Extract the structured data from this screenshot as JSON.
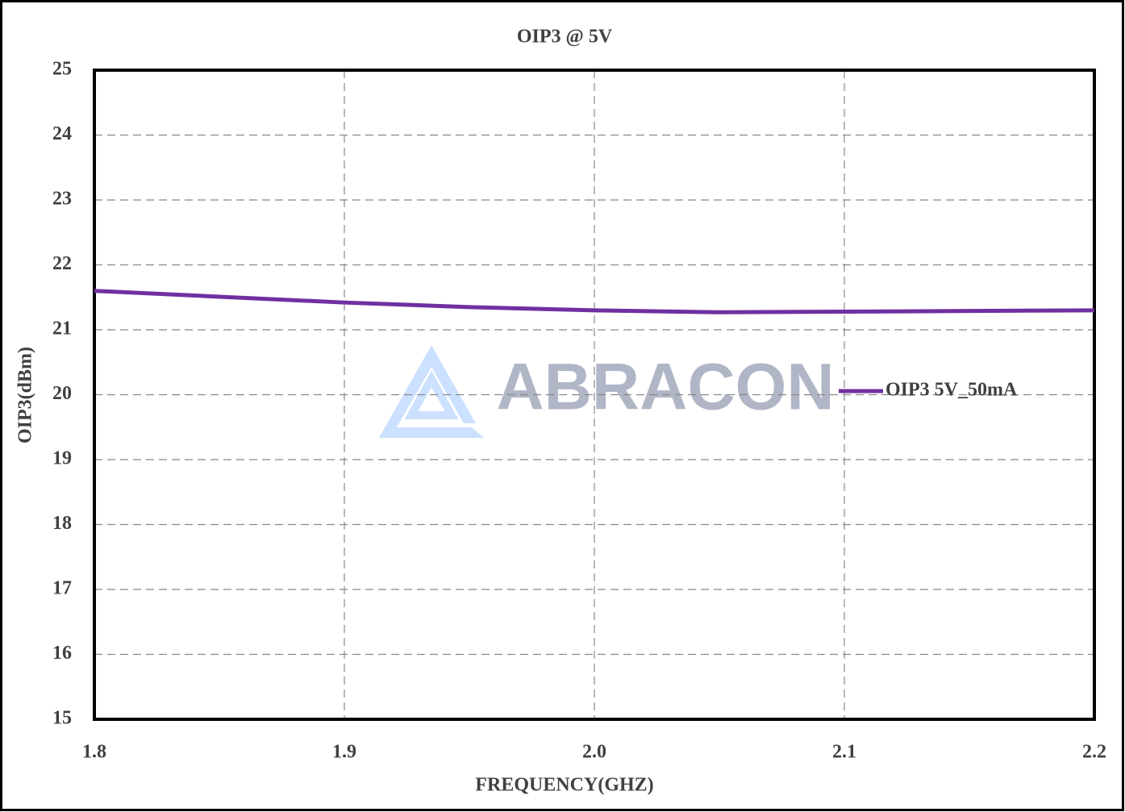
{
  "chart_data": {
    "type": "line",
    "title": "OIP3 @ 5V",
    "x_label": "FREQUENCY(GHZ)",
    "y_label": "OIP3(dBm)",
    "watermark": "ABRACON",
    "x": [
      1.8,
      1.85,
      1.9,
      1.95,
      2.0,
      2.05,
      2.1,
      2.15,
      2.2
    ],
    "series": [
      {
        "name": "OIP3 5V_50mA",
        "color": "#7030a0",
        "values": [
          21.6,
          21.51,
          21.42,
          21.35,
          21.3,
          21.27,
          21.28,
          21.29,
          21.3
        ]
      }
    ],
    "xlim": [
      1.8,
      2.2
    ],
    "xticks": [
      1.8,
      1.9,
      {
        "value": 2,
        "label": "2.0"
      },
      2.1,
      2.2
    ],
    "ylim": [
      15,
      25
    ],
    "yticks": [
      15,
      16,
      17,
      18,
      19,
      20,
      21,
      22,
      23,
      24,
      25
    ],
    "grid": true,
    "legend": "right"
  }
}
